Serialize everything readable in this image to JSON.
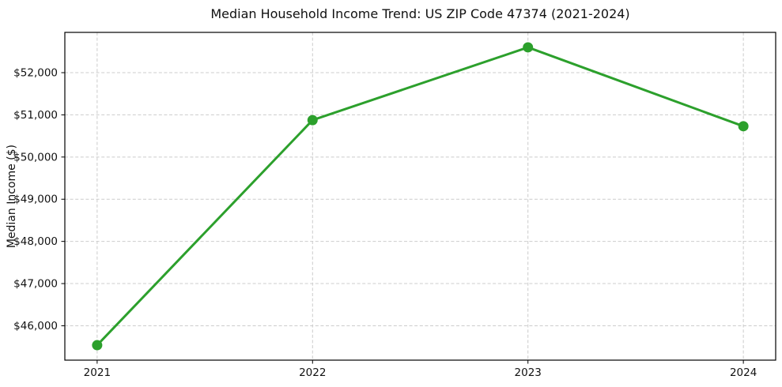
{
  "figure": {
    "background": "#ffffff"
  },
  "chart_data": {
    "type": "line",
    "title": "Median Household Income Trend: US ZIP Code 47374 (2021-2024)",
    "xlabel": "",
    "ylabel": "Median Income ($)",
    "x": [
      2021,
      2022,
      2023,
      2024
    ],
    "x_tick_labels": [
      "2021",
      "2022",
      "2023",
      "2024"
    ],
    "values": [
      45540,
      50875,
      52600,
      50730
    ],
    "y_tick_values": [
      46000,
      47000,
      48000,
      49000,
      50000,
      51000,
      52000
    ],
    "y_tick_labels": [
      "$46,000",
      "$47,000",
      "$48,000",
      "$49,000",
      "$50,000",
      "$51,000",
      "$52,000"
    ],
    "xlim": [
      2020.85,
      2024.15
    ],
    "ylim": [
      45185,
      52955
    ],
    "grid": true,
    "grid_style": "dashed",
    "legend_position": "none",
    "line_color": "#2ca02c",
    "marker": "circle",
    "marker_diameter": 13,
    "line_width": 3,
    "grid_color": "#cccccc",
    "axis_color": "#000000",
    "text_color": "#111111"
  }
}
